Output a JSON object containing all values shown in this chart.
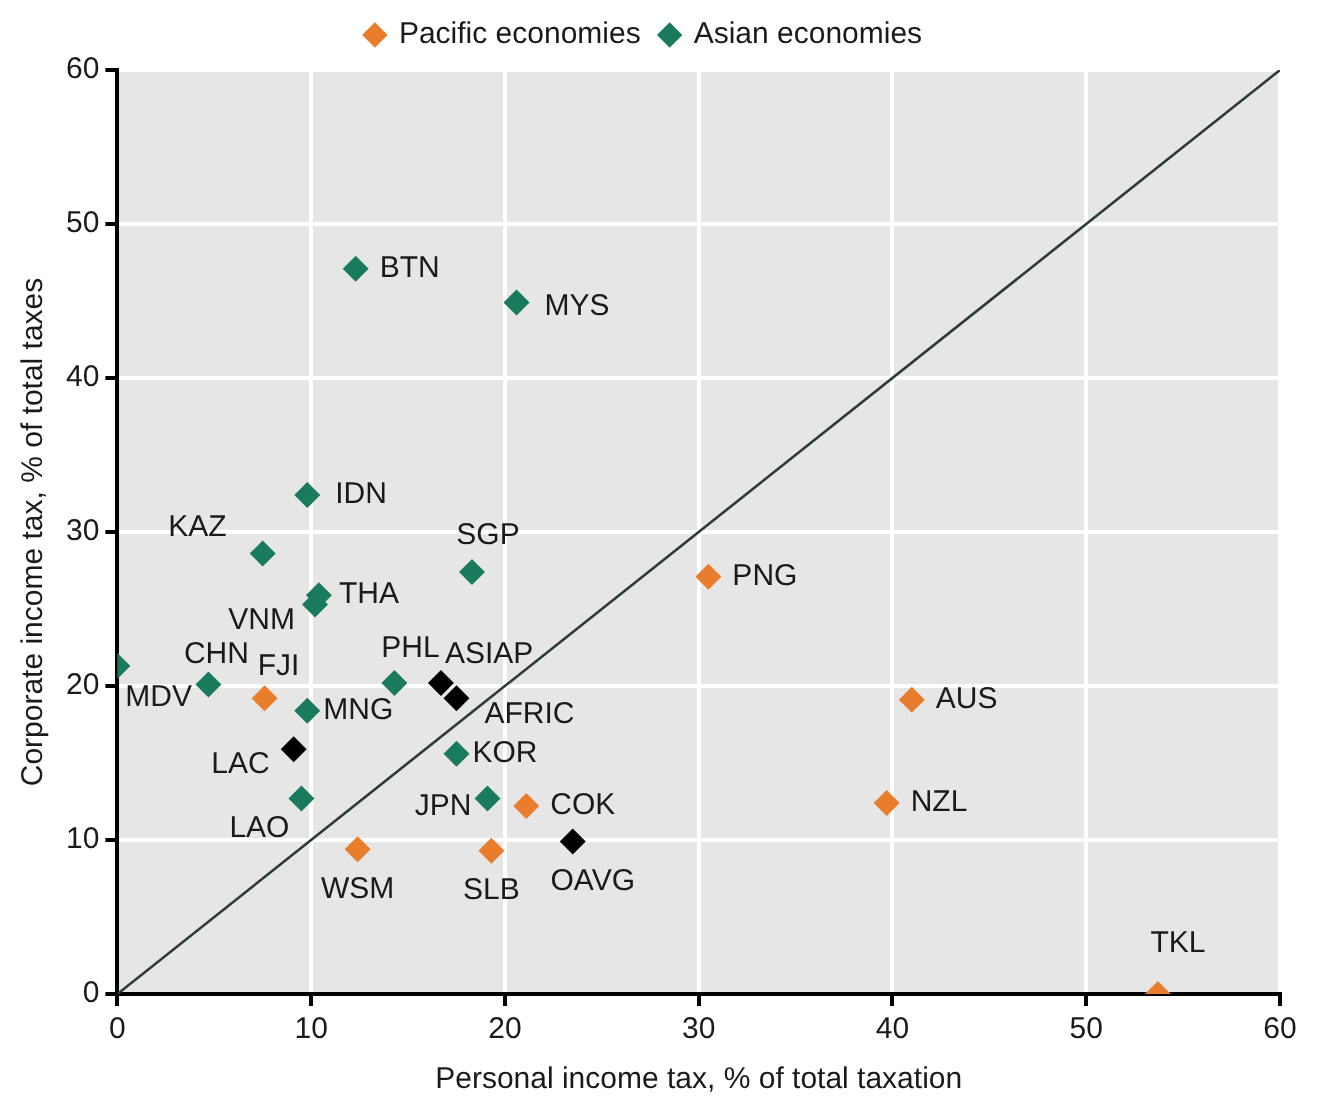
{
  "chart_data": {
    "type": "scatter",
    "xlabel": "Personal income tax, % of total taxation",
    "ylabel": "Corporate income tax, % of total taxes",
    "xlim": [
      0,
      60
    ],
    "ylim": [
      0,
      60
    ],
    "xticks": [
      0,
      10,
      20,
      30,
      40,
      50,
      60
    ],
    "yticks": [
      0,
      10,
      20,
      30,
      40,
      50,
      60
    ],
    "grid": true,
    "legend": "top",
    "marker": "diamond",
    "series": [
      {
        "name": "Pacific economies",
        "color": "#e87d2b",
        "x": [
          7.6,
          21.1,
          12.4,
          19.3,
          30.5,
          41.0,
          39.7,
          53.7
        ],
        "values": [
          19.2,
          12.2,
          9.4,
          9.3,
          27.1,
          19.1,
          12.4,
          0
        ]
      },
      {
        "name": "Asian economies",
        "color": "#1a7a5e",
        "x": [
          12.3,
          20.6,
          9.8,
          7.5,
          18.3,
          10.4,
          10.2,
          0,
          4.7,
          14.3,
          9.8,
          17.5,
          9.5,
          19.1
        ],
        "values": [
          47.1,
          44.9,
          32.4,
          28.6,
          27.4,
          25.9,
          25.3,
          21.3,
          20.1,
          20.2,
          18.4,
          15.6,
          12.7,
          12.7
        ]
      },
      {
        "color": "#000000",
        "x": [
          16.7,
          17.5,
          9.1,
          23.5
        ],
        "values": [
          20.2,
          19.2,
          15.9,
          9.9
        ]
      },
      {
        "type": "line",
        "color": "#2b3a3a",
        "marker": "none",
        "x": [
          0,
          60
        ],
        "values": [
          0,
          60
        ]
      }
    ],
    "annotations": [
      {
        "text": "BTN",
        "x": 12.3,
        "y": 47.1
      },
      {
        "text": "MYS",
        "x": 20.6,
        "y": 44.9
      },
      {
        "text": "IDN",
        "x": 9.8,
        "y": 32.4
      },
      {
        "text": "KAZ",
        "x": 7.5,
        "y": 28.6
      },
      {
        "text": "SGP",
        "x": 18.3,
        "y": 27.4
      },
      {
        "text": "THA",
        "x": 10.4,
        "y": 25.9
      },
      {
        "text": "VNM",
        "x": 10.2,
        "y": 25.3
      },
      {
        "text": "MDV",
        "x": 0,
        "y": 21.3
      },
      {
        "text": "CHN",
        "x": 4.7,
        "y": 20.1
      },
      {
        "text": "PHL",
        "x": 14.3,
        "y": 20.2
      },
      {
        "text": "MNG",
        "x": 9.8,
        "y": 18.4
      },
      {
        "text": "KOR",
        "x": 17.5,
        "y": 15.6
      },
      {
        "text": "LAO",
        "x": 9.5,
        "y": 12.7
      },
      {
        "text": "JPN",
        "x": 19.1,
        "y": 12.7
      },
      {
        "text": "FJI",
        "x": 7.6,
        "y": 19.2
      },
      {
        "text": "COK",
        "x": 21.1,
        "y": 12.2
      },
      {
        "text": "WSM",
        "x": 12.4,
        "y": 9.4
      },
      {
        "text": "SLB",
        "x": 19.3,
        "y": 9.3
      },
      {
        "text": "PNG",
        "x": 30.5,
        "y": 27.1
      },
      {
        "text": "AUS",
        "x": 41.0,
        "y": 19.1
      },
      {
        "text": "NZL",
        "x": 39.7,
        "y": 12.4
      },
      {
        "text": "TKL",
        "x": 53.7,
        "y": 0
      },
      {
        "text": "ASIAP",
        "x": 16.7,
        "y": 20.2
      },
      {
        "text": "AFRIC",
        "x": 17.5,
        "y": 19.2
      },
      {
        "text": "LAC",
        "x": 9.1,
        "y": 15.9
      },
      {
        "text": "OAVG",
        "x": 23.5,
        "y": 9.9
      }
    ]
  }
}
